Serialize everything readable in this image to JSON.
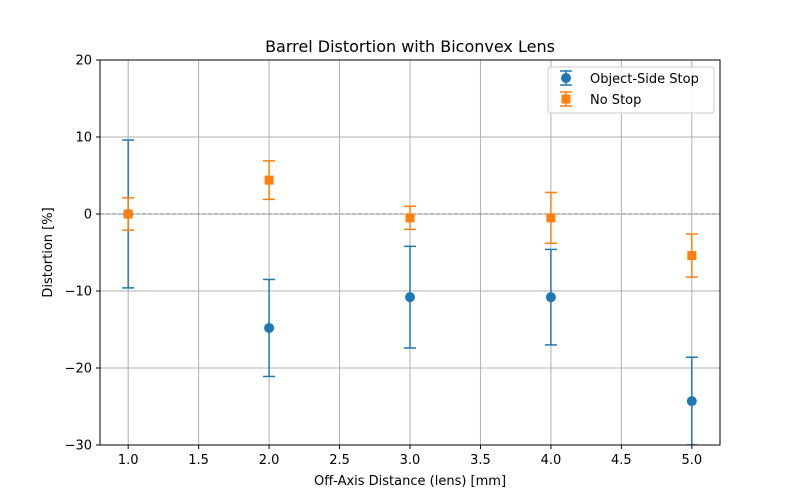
{
  "chart_data": {
    "type": "scatter",
    "title": "Barrel Distortion with Biconvex Lens",
    "xlabel": "Off-Axis Distance (lens) [mm]",
    "ylabel": "Distortion [%]",
    "xlim": [
      0.8,
      5.2
    ],
    "ylim": [
      -30,
      20
    ],
    "xticks": [
      1.0,
      1.5,
      2.0,
      2.5,
      3.0,
      3.5,
      4.0,
      4.5,
      5.0
    ],
    "xtick_labels": [
      "1.0",
      "1.5",
      "2.0",
      "2.5",
      "3.0",
      "3.5",
      "4.0",
      "4.5",
      "5.0"
    ],
    "yticks": [
      -30,
      -20,
      -10,
      0,
      10,
      20
    ],
    "ytick_labels": [
      "−30",
      "−20",
      "−10",
      "0",
      "10",
      "20"
    ],
    "grid": true,
    "reference_line": {
      "y": 0,
      "style": "dashed",
      "color": "#808080"
    },
    "legend_position": "top-right",
    "series": [
      {
        "name": "Object-Side Stop",
        "color": "#1f77b4",
        "marker": "circle",
        "x": [
          1.0,
          2.0,
          3.0,
          4.0,
          5.0
        ],
        "y": [
          0.0,
          -14.8,
          -10.8,
          -10.8,
          -24.3
        ],
        "yerr": [
          9.6,
          6.3,
          6.6,
          6.2,
          5.7
        ]
      },
      {
        "name": "No Stop",
        "color": "#ff7f0e",
        "marker": "square",
        "x": [
          1.0,
          2.0,
          3.0,
          4.0,
          5.0
        ],
        "y": [
          0.0,
          4.4,
          -0.5,
          -0.5,
          -5.4
        ],
        "yerr": [
          2.1,
          2.5,
          1.5,
          3.3,
          2.8
        ]
      }
    ]
  }
}
